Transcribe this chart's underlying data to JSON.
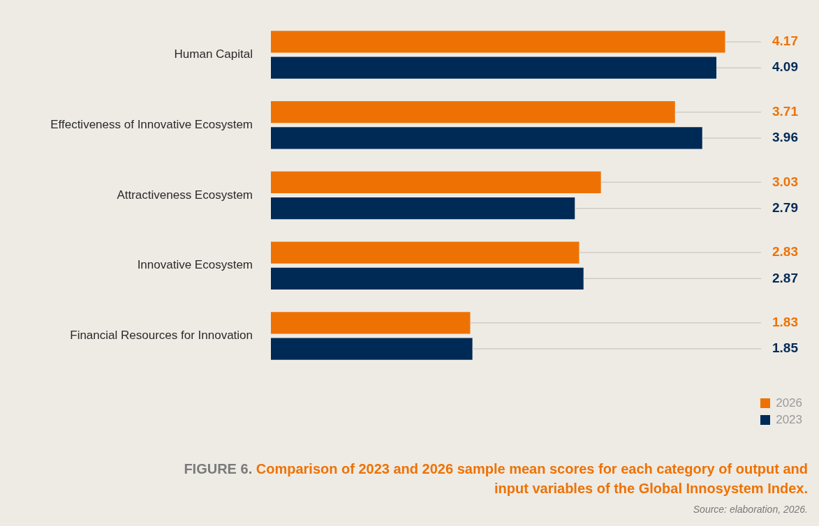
{
  "chart_data": {
    "type": "bar",
    "orientation": "horizontal",
    "title": "FIGURE 6.",
    "subtitle": "Comparison of 2023 and 2026 sample mean scores for each category of output and input variables of the Global Innosystem Index.",
    "categories": [
      "Human Capital",
      "Effectiveness of Innovative Ecosystem",
      "Attractiveness Ecosystem",
      "Innovative Ecosystem",
      "Financial Resources for Innovation"
    ],
    "series": [
      {
        "name": "2026",
        "color": "#ee7203",
        "values": [
          4.17,
          3.71,
          3.03,
          2.83,
          1.83
        ],
        "value_labels": [
          "4.17",
          "3.71",
          "3.03",
          "2.83",
          "1.83"
        ]
      },
      {
        "name": "2023",
        "color": "#002a56",
        "values": [
          4.09,
          3.96,
          2.79,
          2.87,
          1.85
        ],
        "value_labels": [
          "4.09",
          "3.96",
          "2.79",
          "2.87",
          "1.85"
        ]
      }
    ],
    "tick_labels": "y",
    "legend": "bottom right",
    "annotations": [
      "Source: elaboration, 2026."
    ]
  }
}
